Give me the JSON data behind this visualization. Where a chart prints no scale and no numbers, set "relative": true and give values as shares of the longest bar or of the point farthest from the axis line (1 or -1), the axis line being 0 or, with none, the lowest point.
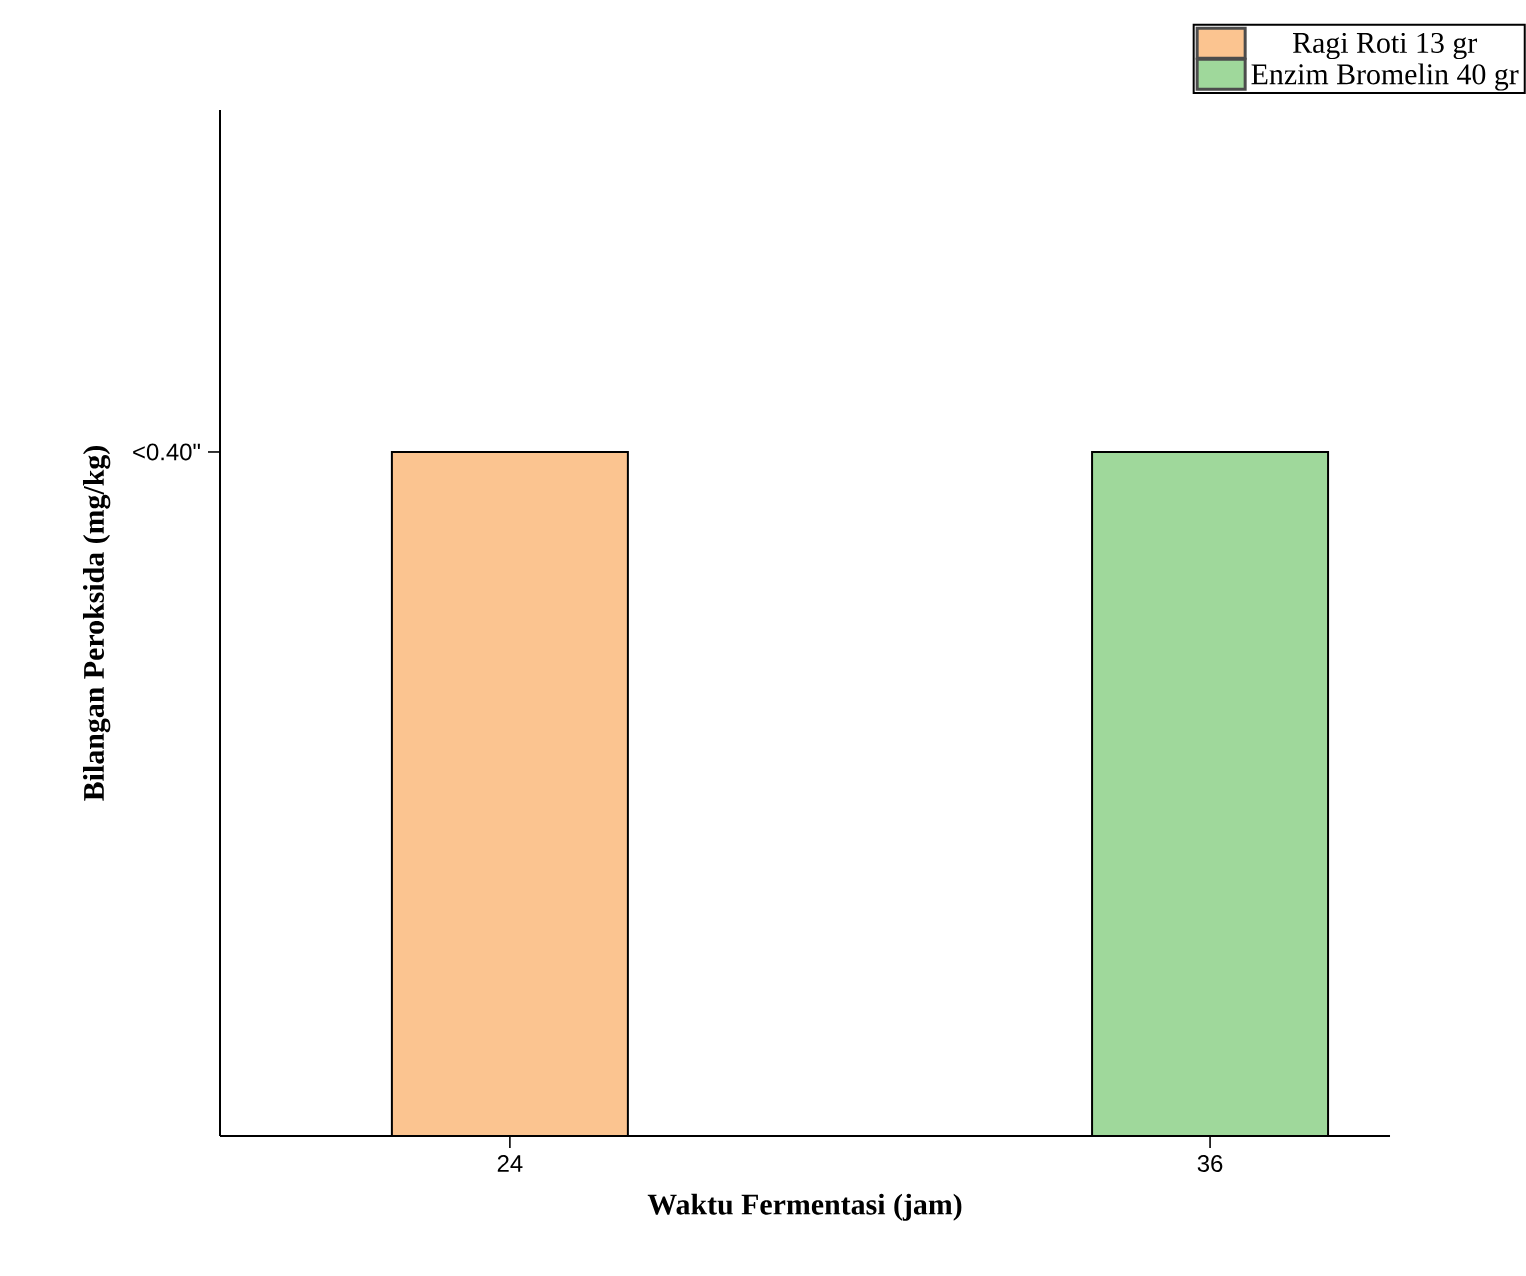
{
  "chart_data": {
    "type": "bar",
    "relative": true,
    "categories": [
      "24",
      "36"
    ],
    "xlabel": "Waktu Fermentasi (jam)",
    "ylabel": "Bilangan Peroksida (mg/kg)",
    "series": [
      {
        "name": "Ragi Roti 13 gr",
        "color": "#fbc490",
        "values": [
          1,
          null
        ]
      },
      {
        "name": "Enzim Bromelin 40 gr",
        "color": "#9fd89b",
        "values": [
          null,
          1
        ]
      }
    ],
    "annotations": [
      "<0.40\""
    ],
    "legend": "top right",
    "grid": false
  }
}
